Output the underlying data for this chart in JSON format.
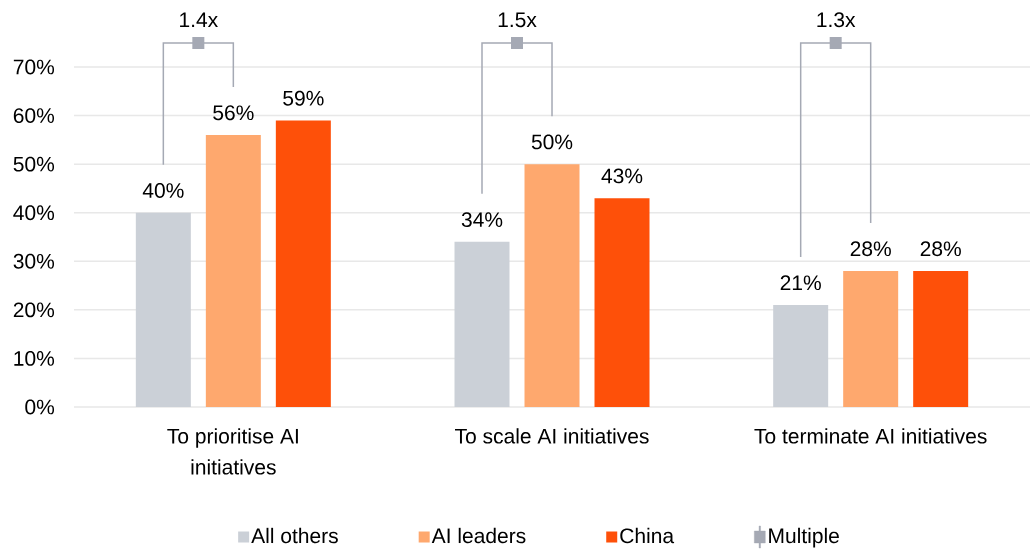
{
  "chart_data": {
    "type": "bar",
    "categories": [
      "To prioritise AI initiatives",
      "To scale AI initiatives",
      "To terminate AI initiatives"
    ],
    "series": [
      {
        "name": "All others",
        "color": "#cbd0d7",
        "values": [
          40,
          34,
          21
        ],
        "value_labels": [
          "40%",
          "34%",
          "21%"
        ]
      },
      {
        "name": "AI leaders",
        "color": "#fea86e",
        "values": [
          56,
          50,
          28
        ],
        "value_labels": [
          "56%",
          "50%",
          "28%"
        ]
      },
      {
        "name": "China",
        "color": "#fe5009",
        "values": [
          59,
          43,
          28
        ],
        "value_labels": [
          "59%",
          "43%",
          "28%"
        ]
      }
    ],
    "annotations": [
      "1.4x",
      "1.5x",
      "1.3x",
      "Multiple"
    ],
    "ylim": [
      0,
      70
    ],
    "yticks": [
      {
        "value": 0,
        "label": "0%"
      },
      {
        "value": 10,
        "label": "10%"
      },
      {
        "value": 20,
        "label": "20%"
      },
      {
        "value": 30,
        "label": "30%"
      },
      {
        "value": 40,
        "label": "40%"
      },
      {
        "value": 50,
        "label": "50%"
      },
      {
        "value": 60,
        "label": "60%"
      },
      {
        "value": 70,
        "label": "70%"
      }
    ],
    "grid": "y",
    "legend": "bottom"
  }
}
